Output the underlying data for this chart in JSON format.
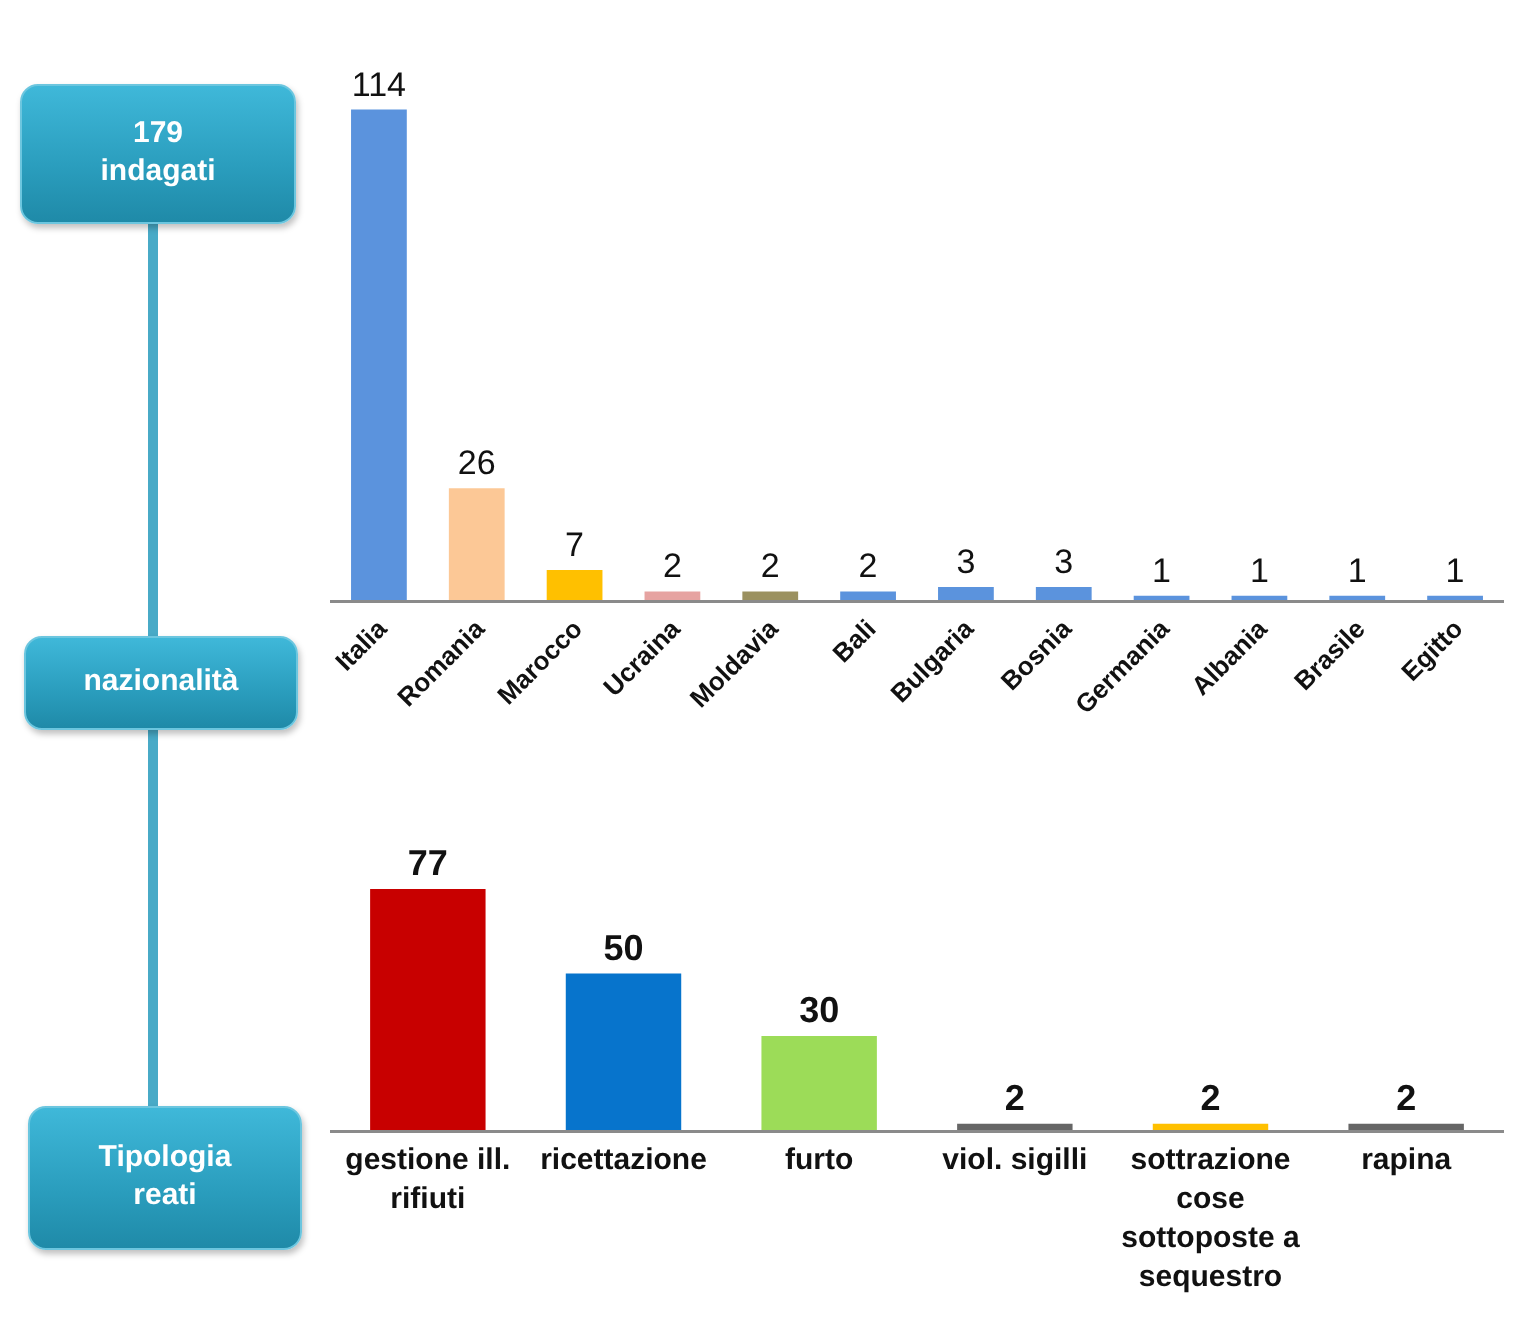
{
  "chart_data": [
    {
      "type": "bar",
      "categories": [
        "Italia",
        "Romania",
        "Marocco",
        "Ucraina",
        "Moldavia",
        "Bali",
        "Bulgaria",
        "Bosnia",
        "Germania",
        "Albania",
        "Brasile",
        "Egitto"
      ],
      "values": [
        114,
        26,
        7,
        2,
        2,
        2,
        3,
        3,
        1,
        1,
        1,
        1
      ],
      "colors": [
        "#5b93dd",
        "#fcc896",
        "#ffc000",
        "#e6a3a1",
        "#9b9160",
        "#5b93dd",
        "#5b93dd",
        "#5b93dd",
        "#5b93dd",
        "#5b93dd",
        "#5b93dd",
        "#5b93dd"
      ],
      "data_labels": true,
      "annotations": [
        "179 indagati",
        "nazionalità"
      ]
    },
    {
      "type": "bar",
      "categories": [
        "gestione ill. rifiuti",
        "ricettazione",
        "furto",
        "viol. sigilli",
        "sottrazione cose sottoposte a sequestro",
        "rapina"
      ],
      "values": [
        77,
        50,
        30,
        2,
        2,
        2
      ],
      "colors": [
        "#c80000",
        "#0774cc",
        "#9cdc58",
        "#666666",
        "#ffc000",
        "#666666"
      ],
      "data_labels": true,
      "annotations": [
        "Tipologia reati"
      ]
    }
  ]
}
